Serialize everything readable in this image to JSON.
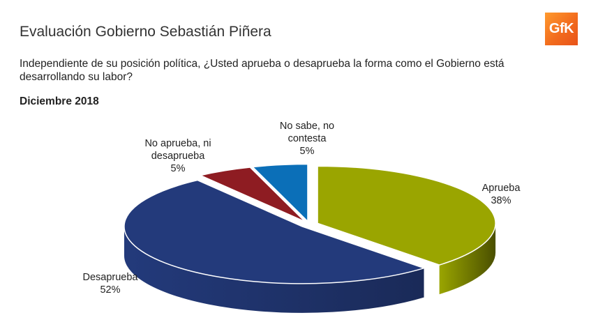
{
  "header": {
    "title": "Evaluación Gobierno Sebastián Piñera",
    "question": "Independiente de su posición política, ¿Usted aprueba o desaprueba la forma como el Gobierno está desarrollando su labor?",
    "period": "Diciembre 2018",
    "logo_text": "GfK"
  },
  "chart_data": {
    "type": "pie",
    "three_d": true,
    "exploded": true,
    "slices": [
      {
        "label_lines": [
          "Aprueba"
        ],
        "value": 38,
        "value_label": "38%",
        "color": "#9aa500",
        "side_color": "#4a4f00"
      },
      {
        "label_lines": [
          "Desaprueba"
        ],
        "value": 52,
        "value_label": "52%",
        "color": "#233a7b",
        "side_color": "#1a2a58"
      },
      {
        "label_lines": [
          "No aprueba, ni",
          "desaprueba"
        ],
        "value": 5,
        "value_label": "5%",
        "color": "#8e1c22",
        "side_color": "#5a1014"
      },
      {
        "label_lines": [
          "No sabe, no",
          "contesta"
        ],
        "value": 5,
        "value_label": "5%",
        "color": "#0b6fb8",
        "side_color": "#064a7c"
      }
    ]
  }
}
